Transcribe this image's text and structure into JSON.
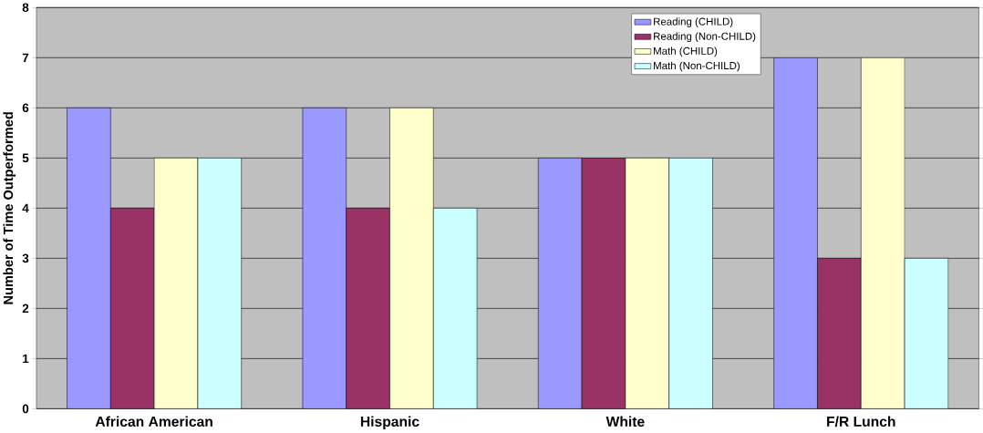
{
  "chart_data": {
    "type": "bar",
    "ylabel": "Number of Time Outperformed",
    "categories": [
      "African American",
      "Hispanic",
      "White",
      "F/R Lunch"
    ],
    "series": [
      {
        "name": "Reading (CHILD)",
        "color": "#9999ff",
        "values": [
          6,
          6,
          5,
          7
        ]
      },
      {
        "name": "Reading (Non-CHILD)",
        "color": "#993366",
        "values": [
          4,
          4,
          5,
          3
        ]
      },
      {
        "name": "Math (CHILD)",
        "color": "#ffffcc",
        "values": [
          5,
          6,
          5,
          7
        ]
      },
      {
        "name": "Math (Non-CHILD)",
        "color": "#ccffff",
        "values": [
          5,
          4,
          5,
          3
        ]
      }
    ],
    "ylim": [
      0,
      8
    ],
    "yticks": [
      0,
      1,
      2,
      3,
      4,
      5,
      6,
      7,
      8
    ],
    "grid": "y",
    "legend": "top right"
  }
}
